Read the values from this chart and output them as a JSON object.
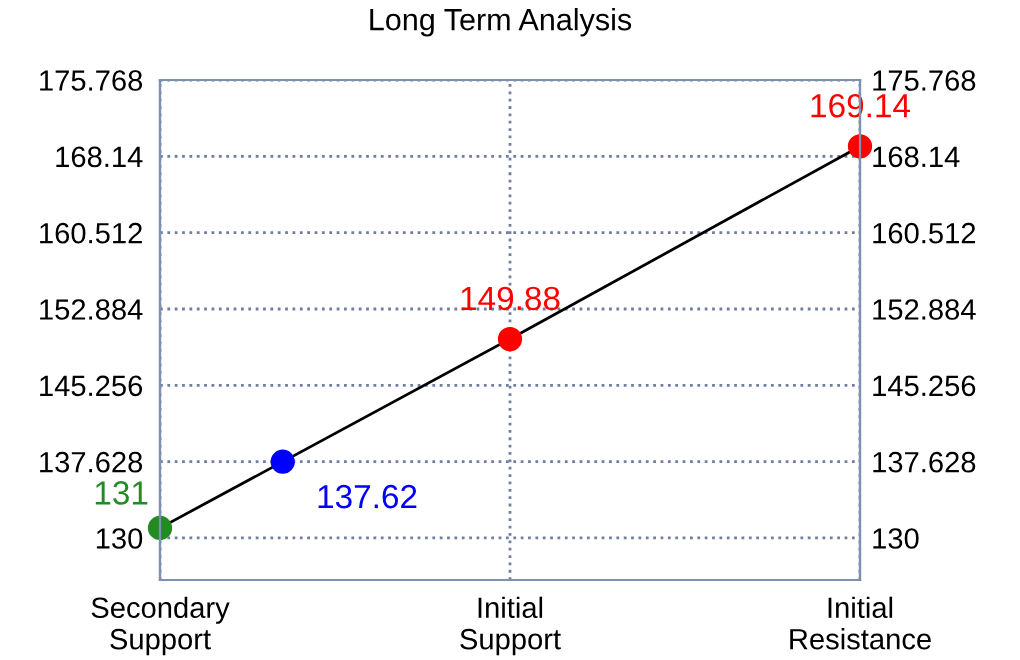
{
  "chart_data": {
    "type": "line",
    "title": "Long Term Analysis",
    "categories": [
      "Secondary\nSupport",
      "Initial\nSupport",
      "Initial\nResistance"
    ],
    "ylim": [
      125.8,
      175.768
    ],
    "yticks": [
      130,
      137.628,
      145.256,
      152.884,
      160.512,
      168.14,
      175.768
    ],
    "y2lim": [
      125.8,
      175.768
    ],
    "y2ticks": [
      130,
      137.628,
      145.256,
      152.884,
      160.512,
      168.14,
      175.768
    ],
    "grid": true,
    "line_style": "solid",
    "marker": "circle",
    "series": [
      {
        "color": "#000000",
        "values": [
          131,
          149.88,
          169.14
        ],
        "colors": [
          "#228b22",
          "#ff0000",
          "#ff0000"
        ],
        "value_labels": [
          "131",
          "149.88",
          "169.14"
        ]
      },
      {
        "type": "scatter",
        "values": [
          137.62,
          null,
          null
        ],
        "color": "#0000ff",
        "value_labels": [
          "137.62",
          null,
          null
        ]
      }
    ]
  }
}
